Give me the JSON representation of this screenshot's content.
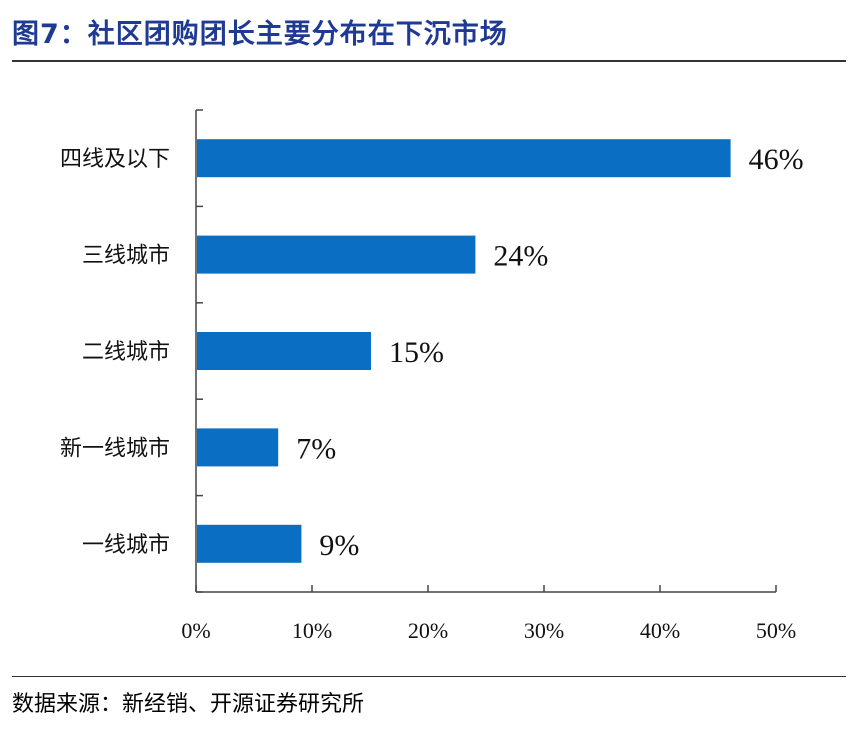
{
  "header": {
    "title": "图7：社区团购团长主要分布在下沉市场"
  },
  "footer": {
    "source": "数据来源：新经销、开源证券研究所"
  },
  "chart_data": {
    "type": "bar",
    "orientation": "horizontal",
    "categories": [
      "四线及以下",
      "三线城市",
      "二线城市",
      "新一线城市",
      "一线城市"
    ],
    "values": [
      46,
      24,
      15,
      7,
      9
    ],
    "value_labels": [
      "46%",
      "24%",
      "15%",
      "7%",
      "9%"
    ],
    "x_ticks": [
      "0%",
      "10%",
      "20%",
      "30%",
      "40%",
      "50%"
    ],
    "xlim": [
      0,
      50
    ],
    "grid": false,
    "bar_color": "#0a6fc2"
  }
}
